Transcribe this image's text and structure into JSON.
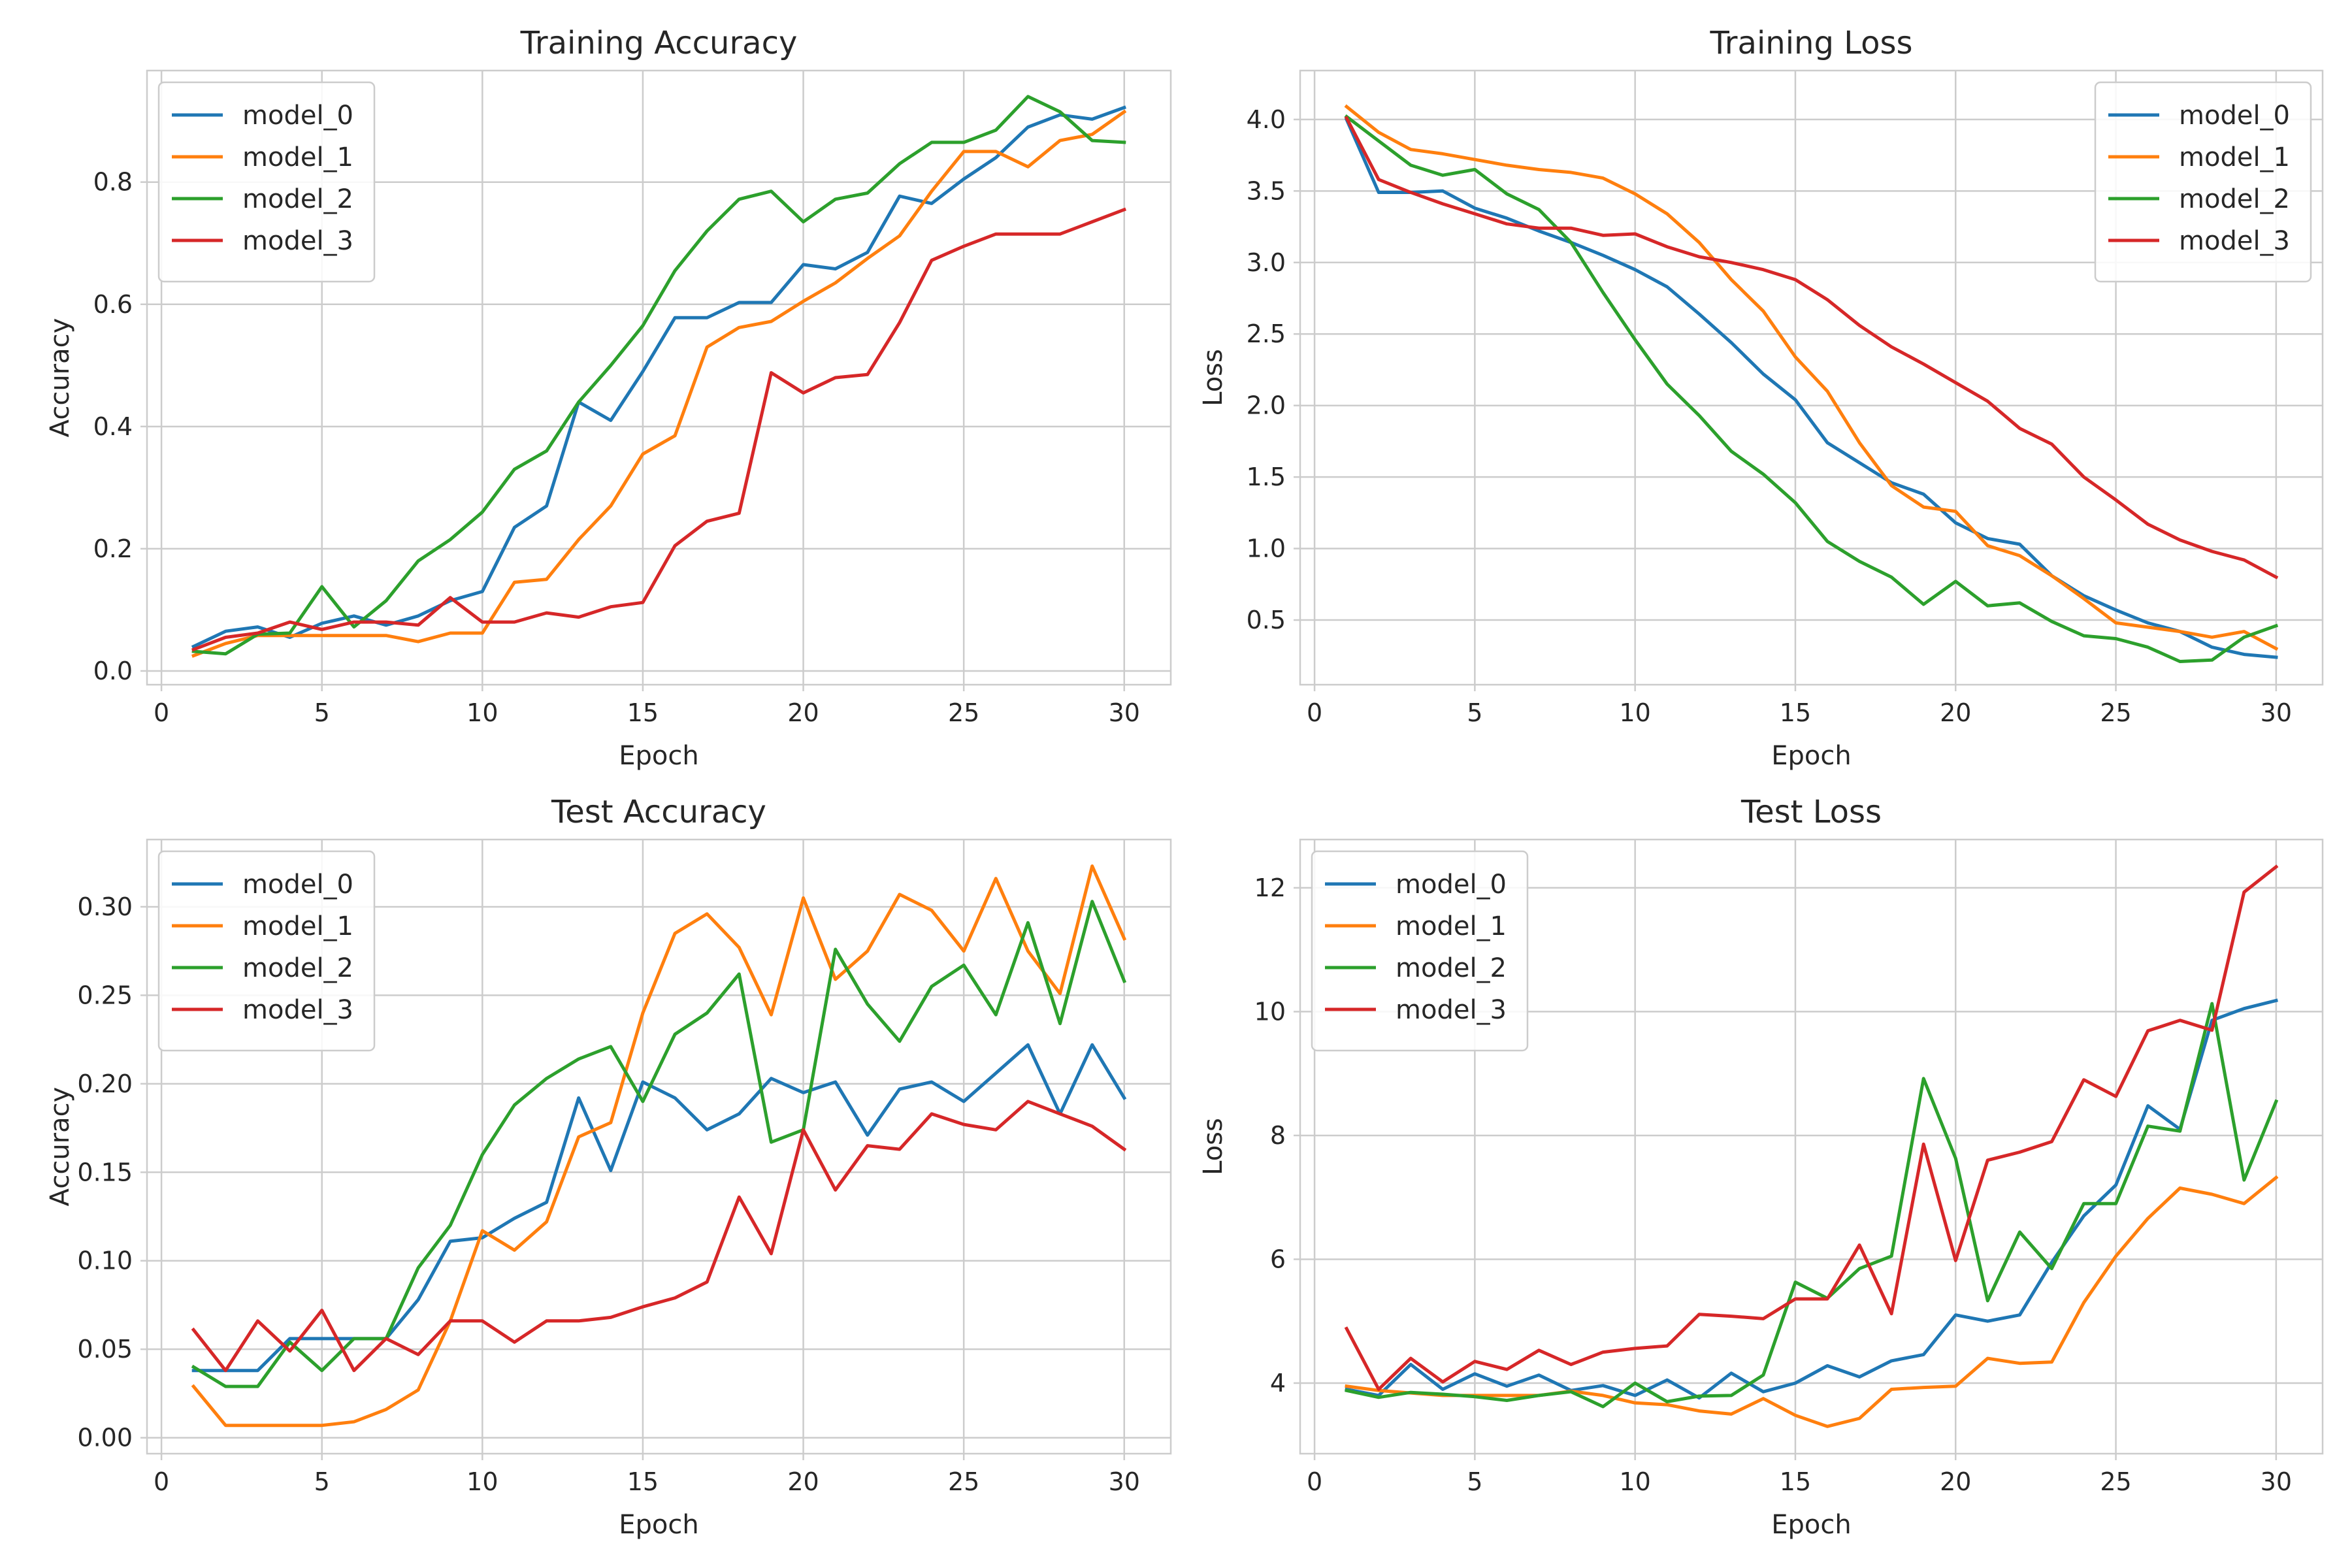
{
  "colors": {
    "model_0": "#1f77b4",
    "model_1": "#ff7f0e",
    "model_2": "#2ca02c",
    "model_3": "#d62728"
  },
  "chart_data": [
    {
      "type": "line",
      "title": "Training Accuracy",
      "xlabel": "Epoch",
      "ylabel": "Accuracy",
      "xlim": [
        -0.45,
        31.45
      ],
      "ylim": [
        -0.0225,
        0.9825
      ],
      "xticks": [
        0,
        5,
        10,
        15,
        20,
        25,
        30
      ],
      "yticks": [
        0.0,
        0.2,
        0.4,
        0.6,
        0.8
      ],
      "ytick_labels": [
        "0.0",
        "0.2",
        "0.4",
        "0.6",
        "0.8"
      ],
      "grid": true,
      "legend": "upper left",
      "x": [
        1,
        2,
        3,
        4,
        5,
        6,
        7,
        8,
        9,
        10,
        11,
        12,
        13,
        14,
        15,
        16,
        17,
        18,
        19,
        20,
        21,
        22,
        23,
        24,
        25,
        26,
        27,
        28,
        29,
        30
      ],
      "series": [
        {
          "name": "model_0",
          "values": [
            0.04,
            0.065,
            0.072,
            0.055,
            0.078,
            0.09,
            0.075,
            0.09,
            0.115,
            0.13,
            0.235,
            0.27,
            0.44,
            0.41,
            0.49,
            0.578,
            0.578,
            0.603,
            0.603,
            0.665,
            0.658,
            0.685,
            0.777,
            0.765,
            0.805,
            0.84,
            0.89,
            0.91,
            0.903,
            0.922
          ]
        },
        {
          "name": "model_1",
          "values": [
            0.025,
            0.045,
            0.058,
            0.058,
            0.058,
            0.058,
            0.058,
            0.048,
            0.062,
            0.062,
            0.145,
            0.15,
            0.215,
            0.27,
            0.355,
            0.385,
            0.53,
            0.562,
            0.572,
            0.605,
            0.635,
            0.675,
            0.712,
            0.785,
            0.85,
            0.85,
            0.825,
            0.868,
            0.878,
            0.915
          ]
        },
        {
          "name": "model_2",
          "values": [
            0.032,
            0.028,
            0.06,
            0.062,
            0.138,
            0.072,
            0.115,
            0.18,
            0.215,
            0.26,
            0.33,
            0.36,
            0.44,
            0.5,
            0.565,
            0.655,
            0.72,
            0.772,
            0.785,
            0.735,
            0.772,
            0.782,
            0.83,
            0.865,
            0.865,
            0.885,
            0.94,
            0.915,
            0.868,
            0.865
          ]
        },
        {
          "name": "model_3",
          "values": [
            0.035,
            0.055,
            0.062,
            0.08,
            0.068,
            0.08,
            0.08,
            0.075,
            0.12,
            0.08,
            0.08,
            0.095,
            0.088,
            0.105,
            0.112,
            0.205,
            0.245,
            0.258,
            0.488,
            0.455,
            0.48,
            0.485,
            0.57,
            0.672,
            0.695,
            0.715,
            0.715,
            0.715,
            0.735,
            0.755
          ]
        }
      ]
    },
    {
      "type": "line",
      "title": "Training Loss",
      "xlabel": "Epoch",
      "ylabel": "Loss",
      "xlim": [
        -0.45,
        31.45
      ],
      "ylim": [
        0.048,
        4.342
      ],
      "xticks": [
        0,
        5,
        10,
        15,
        20,
        25,
        30
      ],
      "yticks": [
        0.5,
        1.0,
        1.5,
        2.0,
        2.5,
        3.0,
        3.5,
        4.0
      ],
      "ytick_labels": [
        "0.5",
        "1.0",
        "1.5",
        "2.0",
        "2.5",
        "3.0",
        "3.5",
        "4.0"
      ],
      "grid": true,
      "legend": "upper right",
      "x": [
        1,
        2,
        3,
        4,
        5,
        6,
        7,
        8,
        9,
        10,
        11,
        12,
        13,
        14,
        15,
        16,
        17,
        18,
        19,
        20,
        21,
        22,
        23,
        24,
        25,
        26,
        27,
        28,
        29,
        30
      ],
      "series": [
        {
          "name": "model_0",
          "values": [
            4.0,
            3.49,
            3.49,
            3.5,
            3.38,
            3.31,
            3.22,
            3.14,
            3.05,
            2.95,
            2.83,
            2.64,
            2.44,
            2.22,
            2.04,
            1.74,
            1.6,
            1.46,
            1.38,
            1.18,
            1.07,
            1.03,
            0.81,
            0.67,
            0.57,
            0.48,
            0.42,
            0.31,
            0.26,
            0.24
          ]
        },
        {
          "name": "model_1",
          "values": [
            4.09,
            3.91,
            3.79,
            3.76,
            3.72,
            3.68,
            3.65,
            3.63,
            3.59,
            3.48,
            3.34,
            3.14,
            2.88,
            2.66,
            2.34,
            2.1,
            1.74,
            1.44,
            1.29,
            1.26,
            1.02,
            0.95,
            0.81,
            0.65,
            0.48,
            0.45,
            0.42,
            0.38,
            0.42,
            0.3
          ]
        },
        {
          "name": "model_2",
          "values": [
            4.02,
            3.85,
            3.68,
            3.61,
            3.65,
            3.48,
            3.37,
            3.14,
            2.79,
            2.46,
            2.15,
            1.93,
            1.68,
            1.52,
            1.32,
            1.05,
            0.91,
            0.8,
            0.61,
            0.77,
            0.6,
            0.62,
            0.49,
            0.39,
            0.37,
            0.31,
            0.21,
            0.22,
            0.38,
            0.46
          ]
        },
        {
          "name": "model_3",
          "values": [
            4.01,
            3.58,
            3.49,
            3.41,
            3.34,
            3.27,
            3.24,
            3.24,
            3.19,
            3.2,
            3.11,
            3.04,
            3.0,
            2.95,
            2.88,
            2.74,
            2.56,
            2.41,
            2.29,
            2.16,
            2.03,
            1.84,
            1.73,
            1.5,
            1.34,
            1.17,
            1.06,
            0.98,
            0.92,
            0.8
          ]
        }
      ]
    },
    {
      "type": "line",
      "title": "Test Accuracy",
      "xlabel": "Epoch",
      "ylabel": "Accuracy",
      "xlim": [
        -0.45,
        31.45
      ],
      "ylim": [
        -0.009,
        0.338
      ],
      "xticks": [
        0,
        5,
        10,
        15,
        20,
        25,
        30
      ],
      "yticks": [
        0.0,
        0.05,
        0.1,
        0.15,
        0.2,
        0.25,
        0.3
      ],
      "ytick_labels": [
        "0.00",
        "0.05",
        "0.10",
        "0.15",
        "0.20",
        "0.25",
        "0.30"
      ],
      "grid": true,
      "legend": "upper left",
      "x": [
        1,
        2,
        3,
        4,
        5,
        6,
        7,
        8,
        9,
        10,
        11,
        12,
        13,
        14,
        15,
        16,
        17,
        18,
        19,
        20,
        21,
        22,
        23,
        24,
        25,
        26,
        27,
        28,
        29,
        30
      ],
      "series": [
        {
          "name": "model_0",
          "values": [
            0.038,
            0.038,
            0.038,
            0.056,
            0.056,
            0.056,
            0.056,
            0.078,
            0.111,
            0.113,
            0.124,
            0.133,
            0.192,
            0.151,
            0.201,
            0.192,
            0.174,
            0.183,
            0.203,
            0.195,
            0.201,
            0.171,
            0.197,
            0.201,
            0.19,
            0.206,
            0.222,
            0.183,
            0.222,
            0.192
          ]
        },
        {
          "name": "model_1",
          "values": [
            0.029,
            0.007,
            0.007,
            0.007,
            0.007,
            0.009,
            0.016,
            0.027,
            0.066,
            0.117,
            0.106,
            0.122,
            0.17,
            0.178,
            0.24,
            0.285,
            0.296,
            0.277,
            0.239,
            0.305,
            0.259,
            0.275,
            0.307,
            0.298,
            0.275,
            0.316,
            0.275,
            0.251,
            0.323,
            0.282
          ]
        },
        {
          "name": "model_2",
          "values": [
            0.04,
            0.029,
            0.029,
            0.054,
            0.038,
            0.056,
            0.056,
            0.096,
            0.12,
            0.16,
            0.188,
            0.203,
            0.214,
            0.221,
            0.19,
            0.228,
            0.24,
            0.262,
            0.167,
            0.174,
            0.276,
            0.245,
            0.224,
            0.255,
            0.267,
            0.239,
            0.291,
            0.234,
            0.303,
            0.258
          ]
        },
        {
          "name": "model_3",
          "values": [
            0.061,
            0.038,
            0.066,
            0.049,
            0.072,
            0.038,
            0.056,
            0.047,
            0.066,
            0.066,
            0.054,
            0.066,
            0.066,
            0.068,
            0.074,
            0.079,
            0.088,
            0.136,
            0.104,
            0.174,
            0.14,
            0.165,
            0.163,
            0.183,
            0.177,
            0.174,
            0.19,
            0.183,
            0.176,
            0.163
          ]
        }
      ]
    },
    {
      "type": "line",
      "title": "Test Loss",
      "xlabel": "Epoch",
      "ylabel": "Loss",
      "xlim": [
        -0.45,
        31.45
      ],
      "ylim": [
        2.86,
        12.78
      ],
      "xticks": [
        0,
        5,
        10,
        15,
        20,
        25,
        30
      ],
      "yticks": [
        4,
        6,
        8,
        10,
        12
      ],
      "ytick_labels": [
        "4",
        "6",
        "8",
        "10",
        "12"
      ],
      "grid": true,
      "legend": "upper left",
      "x": [
        1,
        2,
        3,
        4,
        5,
        6,
        7,
        8,
        9,
        10,
        11,
        12,
        13,
        14,
        15,
        16,
        17,
        18,
        19,
        20,
        21,
        22,
        23,
        24,
        25,
        26,
        27,
        28,
        29,
        30
      ],
      "series": [
        {
          "name": "model_0",
          "values": [
            3.9,
            3.8,
            4.3,
            3.9,
            4.15,
            3.95,
            4.13,
            3.88,
            3.96,
            3.8,
            4.05,
            3.76,
            4.16,
            3.86,
            4.0,
            4.28,
            4.1,
            4.36,
            4.46,
            5.1,
            5.0,
            5.1,
            5.95,
            6.7,
            7.2,
            8.48,
            8.1,
            9.86,
            10.05,
            10.18
          ]
        },
        {
          "name": "model_1",
          "values": [
            3.95,
            3.88,
            3.84,
            3.8,
            3.8,
            3.8,
            3.8,
            3.87,
            3.8,
            3.68,
            3.65,
            3.55,
            3.5,
            3.75,
            3.48,
            3.3,
            3.43,
            3.9,
            3.93,
            3.95,
            4.4,
            4.32,
            4.34,
            5.3,
            6.05,
            6.66,
            7.15,
            7.05,
            6.9,
            7.32
          ]
        },
        {
          "name": "model_2",
          "values": [
            3.88,
            3.77,
            3.85,
            3.82,
            3.78,
            3.72,
            3.8,
            3.86,
            3.62,
            4.0,
            3.7,
            3.79,
            3.8,
            4.13,
            5.63,
            5.37,
            5.85,
            6.05,
            8.92,
            7.63,
            5.33,
            6.44,
            5.85,
            6.9,
            6.9,
            8.15,
            8.07,
            10.13,
            7.28,
            8.55
          ]
        },
        {
          "name": "model_3",
          "values": [
            4.88,
            3.9,
            4.4,
            4.02,
            4.35,
            4.22,
            4.53,
            4.3,
            4.5,
            4.56,
            4.6,
            5.11,
            5.08,
            5.04,
            5.36,
            5.36,
            6.23,
            5.12,
            7.86,
            5.98,
            7.6,
            7.73,
            7.9,
            8.9,
            8.63,
            9.69,
            9.86,
            9.7,
            11.93,
            12.34
          ]
        }
      ]
    }
  ]
}
